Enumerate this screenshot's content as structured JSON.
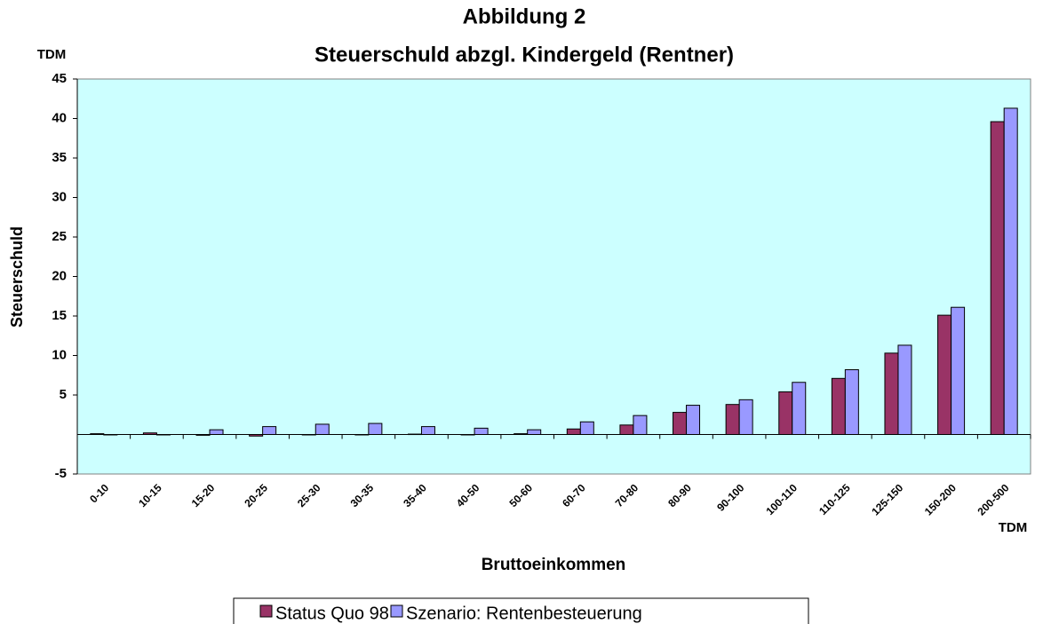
{
  "chart_data": {
    "type": "bar",
    "title": [
      "Abbildung 2",
      "Steuerschuld abzgl. Kindergeld (Rentner)"
    ],
    "y_unit": "TDM",
    "x_unit": "TDM",
    "y_label": "Steuerschuld",
    "x_label": "Bruttoeinkommen",
    "categories": [
      "0-10",
      "10-15",
      "15-20",
      "20-25",
      "25-30",
      "30-35",
      "35-40",
      "40-50",
      "50-60",
      "60-70",
      "70-80",
      "80-90",
      "90-100",
      "100-110",
      "110-125",
      "125-150",
      "150-200",
      "200-500"
    ],
    "series": [
      {
        "name": "Status Quo 98",
        "color": "#993366",
        "values": [
          0.1,
          0.2,
          -0.1,
          -0.2,
          0,
          0,
          0.05,
          0,
          0.1,
          0.7,
          1.2,
          2.8,
          3.8,
          5.4,
          7.1,
          10.3,
          15.1,
          39.6
        ]
      },
      {
        "name": "Szenario: Rentenbesteuerung",
        "color": "#9999ff",
        "values": [
          0,
          0,
          0.6,
          1.0,
          1.3,
          1.4,
          1.0,
          0.8,
          0.6,
          1.6,
          2.4,
          3.7,
          4.4,
          6.6,
          8.2,
          11.3,
          16.1,
          41.3
        ]
      }
    ],
    "ylim": [
      -5,
      45
    ],
    "yticks": [
      -5,
      5,
      10,
      15,
      20,
      25,
      30,
      35,
      40,
      45
    ],
    "plot_color": "#ccffff"
  }
}
